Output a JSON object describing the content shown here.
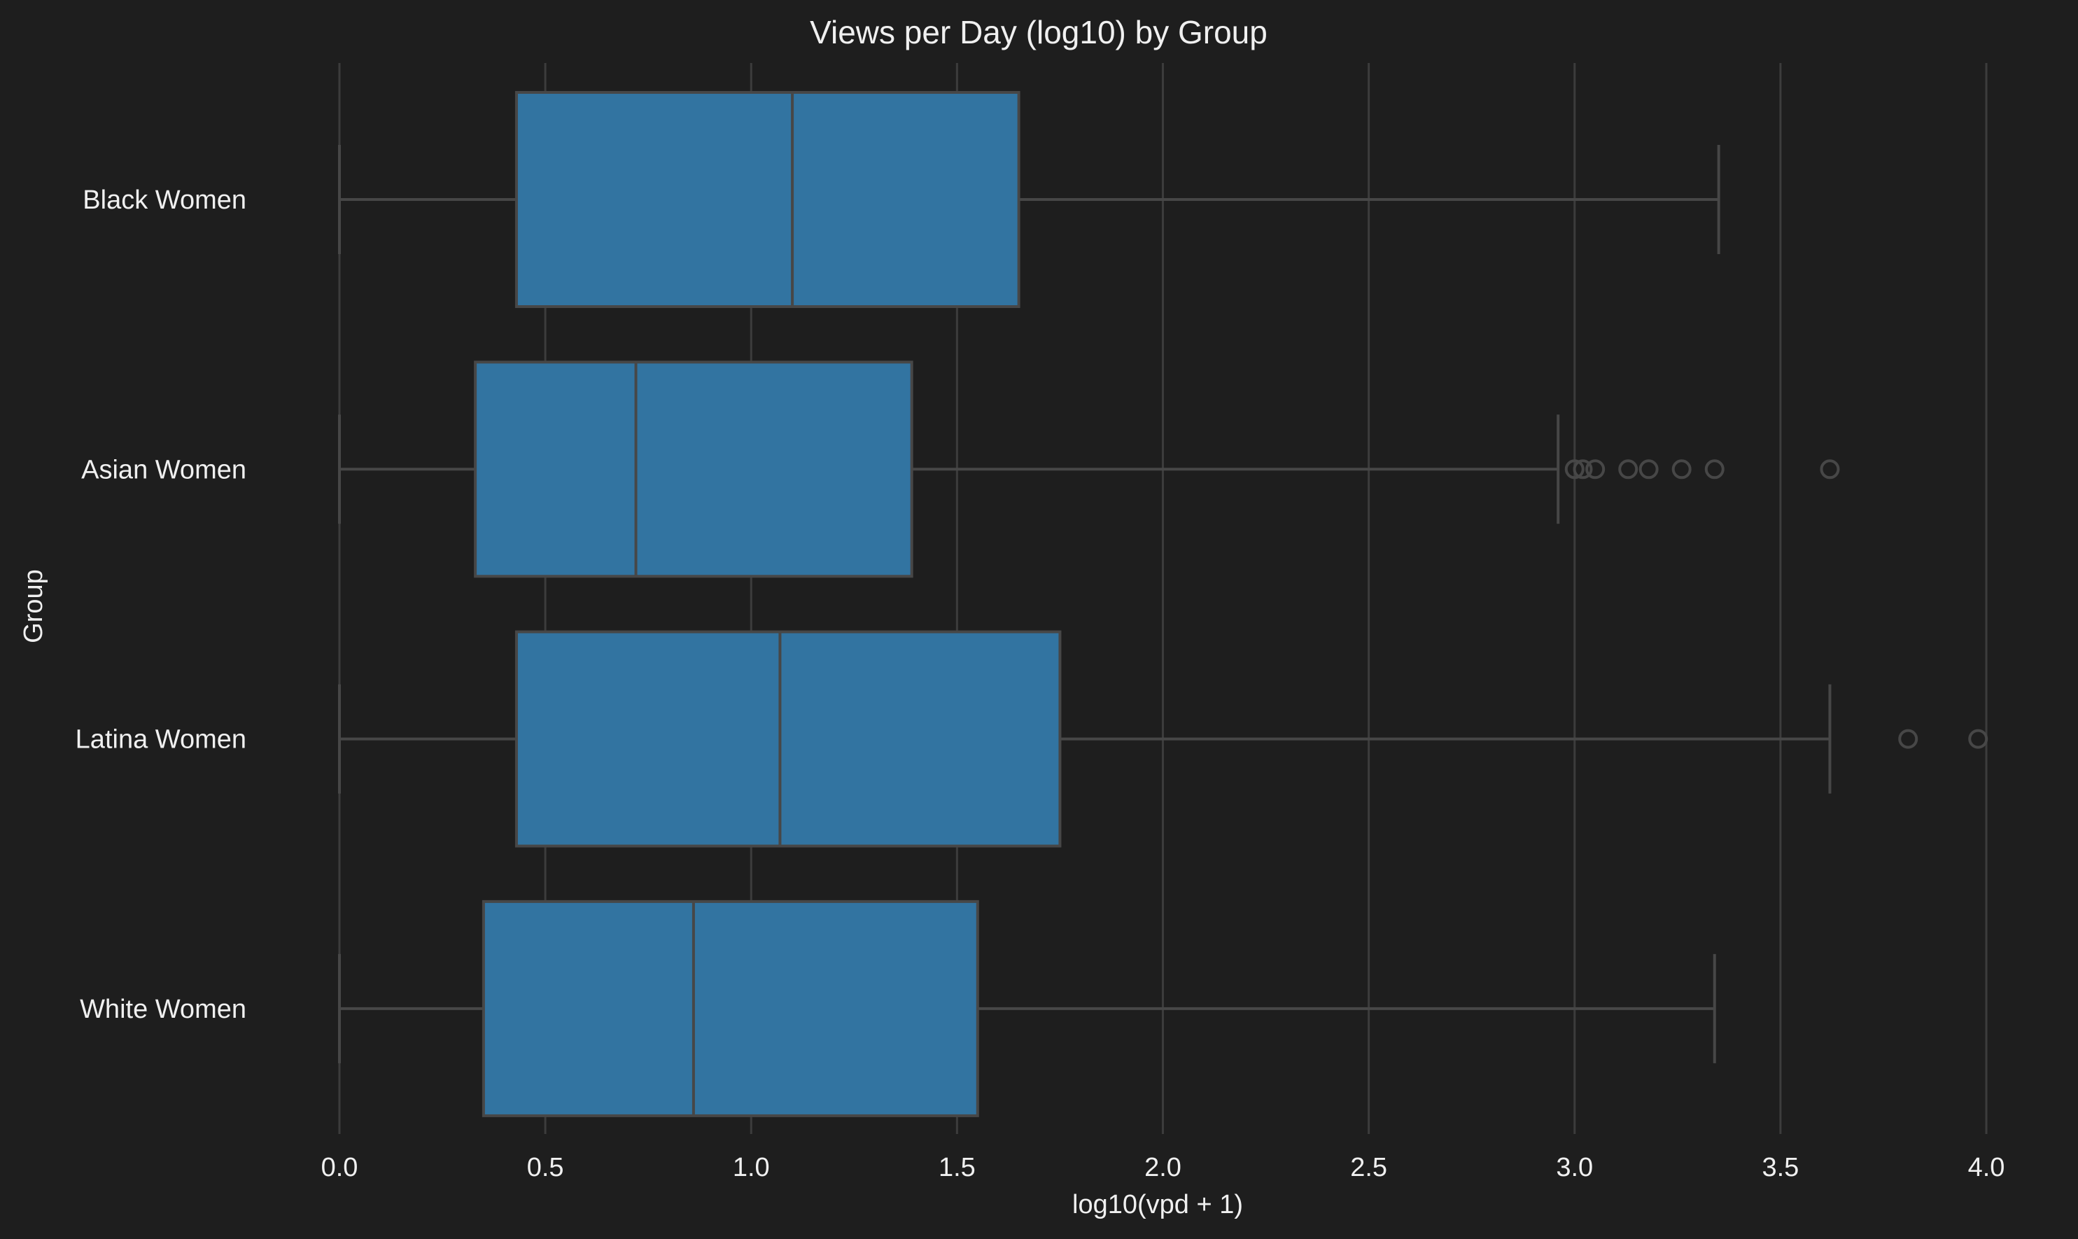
{
  "chart_data": {
    "type": "boxplot",
    "orientation": "horizontal",
    "title": "Views per Day (log10) by Group",
    "xlabel": "log10(vpd + 1)",
    "ylabel": "Group",
    "xlim": [
      0.0,
      4.0
    ],
    "x_ticks": [
      "0.0",
      "0.5",
      "1.0",
      "1.5",
      "2.0",
      "2.5",
      "3.0",
      "3.5",
      "4.0"
    ],
    "grid": true,
    "background_color": "#1e1e1e",
    "box_color": "#3274a1",
    "line_color": "#474747",
    "text_color": "#f0f0f0",
    "categories": [
      "Black Women",
      "Asian Women",
      "Latina Women",
      "White Women"
    ],
    "boxes": [
      {
        "category": "Black Women",
        "whisker_low": 0.0,
        "q1": 0.43,
        "median": 1.1,
        "q3": 1.65,
        "whisker_high": 3.35,
        "outliers": []
      },
      {
        "category": "Asian Women",
        "whisker_low": 0.0,
        "q1": 0.33,
        "median": 0.72,
        "q3": 1.39,
        "whisker_high": 2.96,
        "outliers": [
          3.0,
          3.02,
          3.05,
          3.13,
          3.18,
          3.26,
          3.34,
          3.62
        ]
      },
      {
        "category": "Latina Women",
        "whisker_low": 0.0,
        "q1": 0.43,
        "median": 1.07,
        "q3": 1.75,
        "whisker_high": 3.62,
        "outliers": [
          3.81,
          3.98
        ]
      },
      {
        "category": "White Women",
        "whisker_low": 0.0,
        "q1": 0.35,
        "median": 0.86,
        "q3": 1.55,
        "whisker_high": 3.34,
        "outliers": []
      }
    ]
  }
}
